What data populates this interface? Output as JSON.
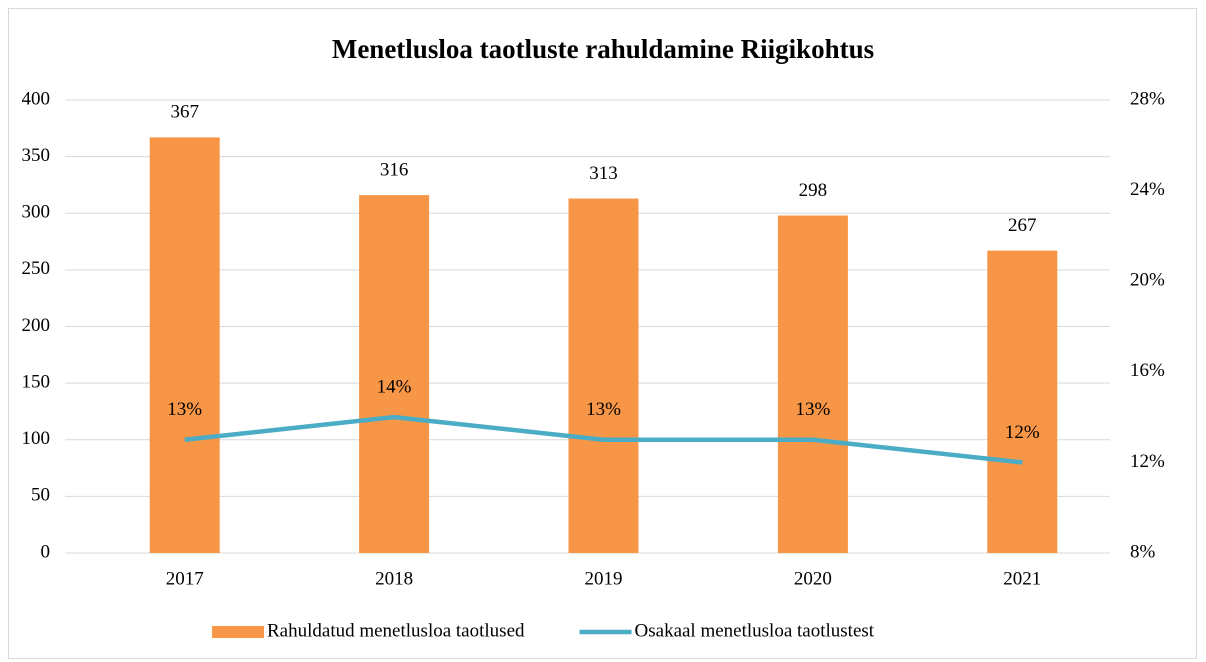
{
  "chart_data": {
    "type": "bar_line",
    "title": "Menetlusloa taotluste rahuldamine Riigikohtus",
    "categories": [
      "2017",
      "2018",
      "2019",
      "2020",
      "2021"
    ],
    "series": [
      {
        "name": "Rahuldatud menetlusloa taotlused",
        "color": "#f79646",
        "type": "bar",
        "values": [
          367,
          316,
          313,
          298,
          267
        ]
      },
      {
        "name": "Osakaal menetlusloa taotlustest",
        "color": "#4bacc6",
        "type": "line",
        "axis": "y2",
        "values": [
          13,
          14,
          13,
          13,
          12
        ],
        "value_labels": [
          "13%",
          "14%",
          "13%",
          "13%",
          "12%"
        ]
      }
    ],
    "ylim": [
      0,
      400
    ],
    "yticks": [
      0,
      50,
      100,
      150,
      200,
      250,
      300,
      350,
      400
    ],
    "y2lim": [
      8,
      28
    ],
    "y2ticks": [
      {
        "value": 8,
        "label": "8%"
      },
      {
        "value": 12,
        "label": "12%"
      },
      {
        "value": 16,
        "label": "16%"
      },
      {
        "value": 20,
        "label": "20%"
      },
      {
        "value": 24,
        "label": "24%"
      },
      {
        "value": 28,
        "label": "28%"
      }
    ],
    "grid": true,
    "legend": "bottom"
  }
}
